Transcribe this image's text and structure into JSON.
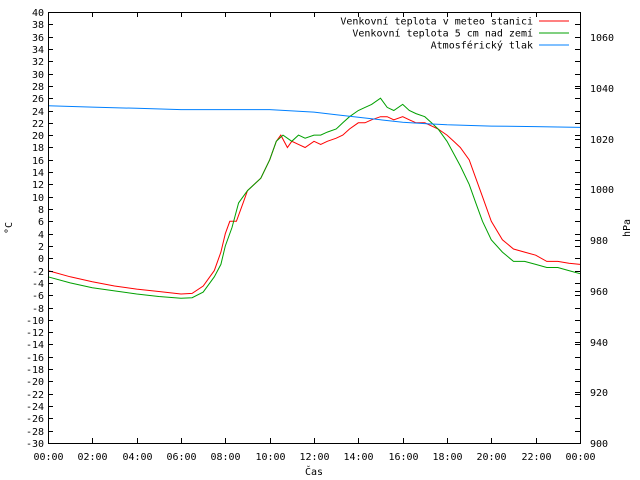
{
  "chart_data": {
    "type": "line",
    "title": "",
    "xlabel": "Čas",
    "ylabel": "°C",
    "y2label": "hPa",
    "x_ticks": [
      "00:00",
      "02:00",
      "04:00",
      "06:00",
      "08:00",
      "10:00",
      "12:00",
      "14:00",
      "16:00",
      "18:00",
      "20:00",
      "22:00",
      "00:00"
    ],
    "x_range_hours": [
      0,
      24
    ],
    "ylim": [
      -30,
      40
    ],
    "y_ticks": [
      "40",
      "38",
      "36",
      "34",
      "32",
      "30",
      "28",
      "26",
      "24",
      "22",
      "20",
      "18",
      "16",
      "14",
      "12",
      "10",
      "8",
      "6",
      "4",
      "2",
      "0",
      "-2",
      "-4",
      "-6",
      "-8",
      "-10",
      "-12",
      "-14",
      "-16",
      "-18",
      "-20",
      "-22",
      "-24",
      "-26",
      "-28",
      "-30"
    ],
    "y2lim": [
      900,
      1070
    ],
    "y2_ticks": [
      "1060",
      "1040",
      "1020",
      "1000",
      "980",
      "960",
      "940",
      "920",
      "900"
    ],
    "legend_position": "top-right",
    "grid": false,
    "series": [
      {
        "name": "Venkovní teplota v meteo stanici",
        "axis": "left",
        "color": "#ff0000",
        "x": [
          0,
          1,
          2,
          3,
          4,
          5,
          6,
          6.5,
          7,
          7.5,
          7.8,
          8.0,
          8.2,
          8.5,
          8.8,
          9.0,
          9.3,
          9.6,
          10,
          10.3,
          10.5,
          10.8,
          11,
          11.3,
          11.6,
          12,
          12.3,
          12.6,
          13,
          13.3,
          13.6,
          14,
          14.3,
          14.6,
          15,
          15.3,
          15.6,
          16,
          16.3,
          16.6,
          17,
          17.3,
          17.6,
          18,
          18.3,
          18.6,
          19,
          19.3,
          19.6,
          20,
          20.5,
          21,
          21.5,
          22,
          22.5,
          23,
          23.5,
          24
        ],
        "values": [
          -2,
          -3,
          -3.8,
          -4.5,
          -5,
          -5.4,
          -5.8,
          -5.7,
          -4.5,
          -2,
          1,
          4,
          6,
          6,
          9,
          11,
          12,
          13,
          16,
          19,
          20,
          18,
          19,
          18.5,
          18,
          19,
          18.5,
          19,
          19.5,
          20,
          21,
          22,
          22,
          22.5,
          23,
          23,
          22.5,
          23,
          22.5,
          22,
          22,
          21.5,
          21,
          20,
          19,
          18,
          16,
          13,
          10,
          6,
          3,
          1.5,
          1,
          0.5,
          -0.5,
          -0.5,
          -0.8,
          -1
        ]
      },
      {
        "name": "Venkovní teplota 5 cm nad zemí",
        "axis": "left",
        "color": "#00a000",
        "x": [
          0,
          1,
          2,
          3,
          4,
          5,
          6,
          6.5,
          7,
          7.5,
          7.8,
          8.0,
          8.3,
          8.6,
          9.0,
          9.3,
          9.6,
          10,
          10.3,
          10.6,
          11,
          11.3,
          11.6,
          12,
          12.3,
          12.6,
          13,
          13.3,
          13.6,
          14,
          14.3,
          14.6,
          15,
          15.3,
          15.6,
          16,
          16.3,
          16.6,
          17,
          17.3,
          17.6,
          18,
          18.3,
          18.6,
          19,
          19.3,
          19.6,
          20,
          20.5,
          21,
          21.5,
          22,
          22.5,
          23,
          23.5,
          24
        ],
        "values": [
          -3,
          -4,
          -4.8,
          -5.3,
          -5.8,
          -6.2,
          -6.5,
          -6.4,
          -5.5,
          -3,
          -1,
          2,
          5,
          9,
          11,
          12,
          13,
          16,
          19,
          20,
          19,
          20,
          19.5,
          20,
          20,
          20.5,
          21,
          22,
          23,
          24,
          24.5,
          25,
          26,
          24.5,
          24,
          25,
          24,
          23.5,
          23,
          22,
          21,
          19,
          17,
          15,
          12,
          9,
          6,
          3,
          1,
          -0.5,
          -0.5,
          -1,
          -1.5,
          -1.5,
          -2,
          -2.5
        ]
      },
      {
        "name": "Atmosférický tlak",
        "axis": "right",
        "color": "#0080ff",
        "x": [
          0,
          2,
          4,
          6,
          8,
          10,
          12,
          13,
          14,
          15,
          16,
          17,
          18,
          20,
          22,
          24
        ],
        "values": [
          1033,
          1032.5,
          1032,
          1031.5,
          1031.5,
          1031.5,
          1030.5,
          1029.5,
          1028.5,
          1027.5,
          1026.5,
          1026,
          1025.5,
          1025,
          1024.8,
          1024.5
        ]
      }
    ]
  }
}
